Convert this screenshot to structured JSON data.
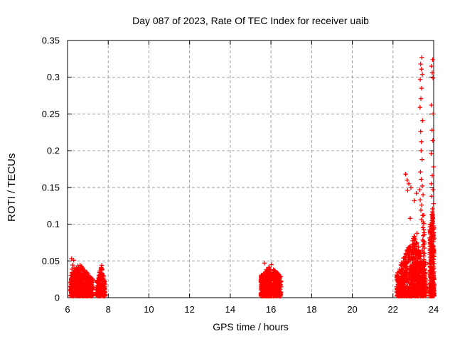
{
  "window": {
    "title": "Day 087 of 2023, Rate Of TEC Index for receiver uaib"
  },
  "chart_data": {
    "type": "scatter",
    "title": "Day 087 of 2023, Rate Of TEC Index for receiver uaib",
    "xlabel": "GPS time / hours",
    "ylabel": "ROTI / TECUs",
    "xlim": [
      6,
      24
    ],
    "ylim": [
      0,
      0.35
    ],
    "xticks": [
      6,
      8,
      10,
      12,
      14,
      16,
      18,
      20,
      22,
      24
    ],
    "xtick_labels": [
      "6",
      "8",
      "10",
      "12",
      "14",
      "16",
      "18",
      "20",
      "22",
      "24"
    ],
    "yticks": [
      0,
      0.05,
      0.1,
      0.15,
      0.2,
      0.25,
      0.3,
      0.35
    ],
    "ytick_labels": [
      "0",
      "0.05",
      "0.1",
      "0.15",
      "0.2",
      "0.25",
      "0.3",
      "0.35"
    ],
    "grid": true,
    "legend": null,
    "marker": "plus",
    "colors": {
      "marker": "#ff0000",
      "grid": "#9e9e9e",
      "axis": "#000000",
      "background": "#ffffff"
    },
    "clusters": [
      {
        "x_range": [
          6.14,
          7.24
        ],
        "peak_x": 6.55,
        "y_min": 0.002,
        "y_edge": 0.026,
        "y_peak": 0.047,
        "count": 550
      },
      {
        "x_range": [
          6.15,
          6.45
        ],
        "peak_x": 6.28,
        "y_min": 0.012,
        "y_edge": 0.03,
        "y_peak": 0.052,
        "count": 40
      },
      {
        "x_range": [
          7.4,
          7.85
        ],
        "peak_x": 7.68,
        "y_min": 0.002,
        "y_edge": 0.018,
        "y_peak": 0.045,
        "count": 200
      },
      {
        "x_range": [
          15.5,
          16.5
        ],
        "peak_x": 15.95,
        "y_min": 0.002,
        "y_edge": 0.03,
        "y_peak": 0.044,
        "count": 520
      },
      {
        "x_range": [
          22.18,
          23.62
        ],
        "peak_x": 23.05,
        "y_min": 0.002,
        "y_edge": 0.035,
        "y_peak": 0.085,
        "count": 680
      },
      {
        "x_range": [
          22.92,
          23.35
        ],
        "peak_x": 23.12,
        "y_min": 0.01,
        "y_edge": 0.045,
        "y_peak": 0.105,
        "count": 110
      },
      {
        "x_range": [
          23.4,
          23.62
        ],
        "peak_x": 23.5,
        "y_min": 0.01,
        "y_edge": 0.05,
        "y_peak": 0.118,
        "count": 70
      },
      {
        "x_range": [
          23.8,
          24.03
        ],
        "peak_x": 23.92,
        "y_min": 0.002,
        "y_edge": 0.095,
        "y_peak": 0.12,
        "count": 300
      }
    ],
    "outlier_points": [
      [
        23.42,
        0.327
      ],
      [
        23.36,
        0.318
      ],
      [
        23.4,
        0.311
      ],
      [
        23.44,
        0.304
      ],
      [
        23.34,
        0.297
      ],
      [
        23.41,
        0.285
      ],
      [
        23.37,
        0.271
      ],
      [
        23.33,
        0.259
      ],
      [
        23.45,
        0.241
      ],
      [
        23.36,
        0.226
      ],
      [
        23.4,
        0.212
      ],
      [
        23.38,
        0.2
      ],
      [
        23.43,
        0.188
      ],
      [
        23.35,
        0.171
      ],
      [
        23.39,
        0.161
      ],
      [
        23.44,
        0.152
      ],
      [
        23.31,
        0.147
      ],
      [
        23.48,
        0.14
      ],
      [
        23.34,
        0.133
      ],
      [
        23.41,
        0.126
      ],
      [
        23.37,
        0.119
      ],
      [
        23.46,
        0.112
      ],
      [
        23.4,
        0.106
      ],
      [
        23.95,
        0.324
      ],
      [
        23.9,
        0.315
      ],
      [
        23.93,
        0.306
      ],
      [
        23.97,
        0.299
      ],
      [
        23.89,
        0.262
      ],
      [
        23.98,
        0.25
      ],
      [
        23.92,
        0.228
      ],
      [
        23.96,
        0.214
      ],
      [
        23.88,
        0.196
      ],
      [
        23.99,
        0.178
      ],
      [
        23.93,
        0.166
      ],
      [
        23.89,
        0.155
      ],
      [
        23.97,
        0.147
      ],
      [
        23.91,
        0.138
      ],
      [
        23.99,
        0.128
      ],
      [
        23.94,
        0.121
      ],
      [
        23.9,
        0.113
      ],
      [
        22.62,
        0.168
      ],
      [
        22.7,
        0.16
      ],
      [
        22.78,
        0.155
      ],
      [
        22.88,
        0.15
      ],
      [
        22.72,
        0.146
      ],
      [
        22.85,
        0.108
      ],
      [
        23.05,
        0.132
      ],
      [
        23.15,
        0.142
      ],
      [
        15.68,
        0.047
      ],
      [
        16.02,
        0.045
      ],
      [
        6.2,
        0.053
      ],
      [
        6.3,
        0.051
      ]
    ]
  }
}
